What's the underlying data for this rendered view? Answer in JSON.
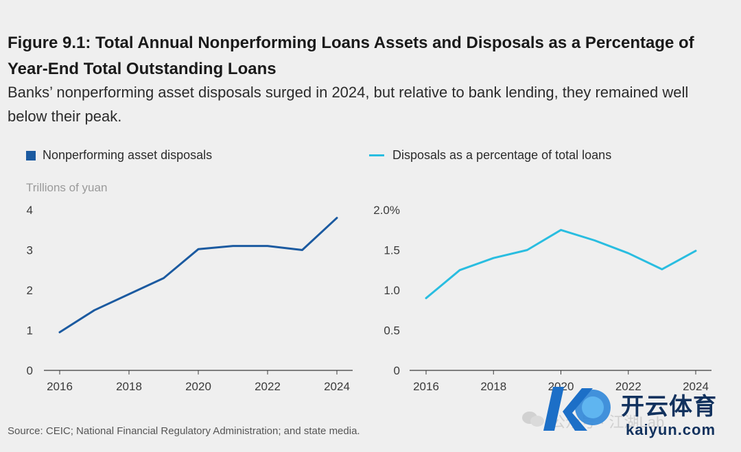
{
  "header": {
    "title": "Figure 9.1: Total Annual Nonperforming Loans Assets and Disposals as a Percentage of Year-End Total Outstanding Loans",
    "subtitle": "Banks’ nonperforming asset disposals surged in 2024, but relative to bank lending, they remained well below their peak."
  },
  "source": "Source: CEIC; National Financial Regulatory Administration; and state media.",
  "watermark": {
    "text": "公众号 · 江湖Lab",
    "brand": "开云体育",
    "url": "kaiyun.com"
  },
  "chart_data": [
    {
      "type": "line",
      "legend": "Nonperforming asset disposals",
      "ylabel": "Trillions of yuan",
      "color": "#1b5aa0",
      "x": [
        2016,
        2017,
        2018,
        2019,
        2020,
        2021,
        2022,
        2023,
        2024
      ],
      "values": [
        0.95,
        1.5,
        1.9,
        2.3,
        3.02,
        3.1,
        3.1,
        3.0,
        3.8
      ],
      "xticks": [
        2016,
        2018,
        2020,
        2022,
        2024
      ],
      "yticks": [
        0,
        1,
        2,
        3,
        4
      ],
      "ytick_labels": [
        "0",
        "1",
        "2",
        "3",
        "4"
      ],
      "ylim": [
        0,
        4
      ],
      "grid": false,
      "legend_position": "top-left"
    },
    {
      "type": "line",
      "legend": "Disposals as a percentage of total loans",
      "ylabel": "",
      "color": "#29bde0",
      "x": [
        2016,
        2017,
        2018,
        2019,
        2020,
        2021,
        2022,
        2023,
        2024
      ],
      "values": [
        0.9,
        1.25,
        1.4,
        1.5,
        1.75,
        1.62,
        1.46,
        1.26,
        1.49
      ],
      "xticks": [
        2016,
        2018,
        2020,
        2022,
        2024
      ],
      "yticks": [
        0,
        0.5,
        1.0,
        1.5,
        2.0
      ],
      "ytick_labels": [
        "0",
        "0.5",
        "1.0",
        "1.5",
        "2.0%"
      ],
      "ylim": [
        0,
        2.0
      ],
      "grid": false,
      "legend_position": "top-left"
    }
  ]
}
